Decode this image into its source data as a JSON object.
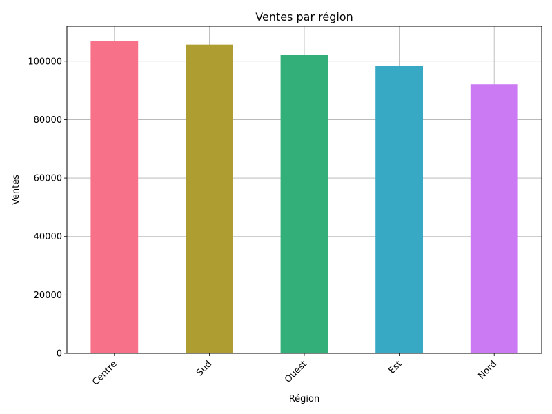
{
  "chart_data": {
    "type": "bar",
    "title": "Ventes par région",
    "xlabel": "Région",
    "ylabel": "Ventes",
    "categories": [
      "Centre",
      "Sud",
      "Ouest",
      "Est",
      "Nord"
    ],
    "values": [
      107000,
      105700,
      102200,
      98300,
      92100
    ],
    "colors": [
      "#f77189",
      "#ae9d31",
      "#33b07a",
      "#38a9c5",
      "#cc7af4"
    ],
    "ylim": [
      0,
      112000
    ],
    "yticks": [
      0,
      20000,
      40000,
      60000,
      80000,
      100000
    ],
    "ytick_labels": [
      "0",
      "20000",
      "40000",
      "60000",
      "80000",
      "100000"
    ],
    "grid": true,
    "xtick_rotation": 45
  }
}
